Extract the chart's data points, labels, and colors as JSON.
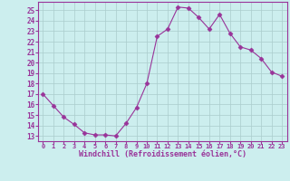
{
  "x": [
    0,
    1,
    2,
    3,
    4,
    5,
    6,
    7,
    8,
    9,
    10,
    11,
    12,
    13,
    14,
    15,
    16,
    17,
    18,
    19,
    20,
    21,
    22,
    23
  ],
  "y": [
    17,
    15.9,
    14.8,
    14.1,
    13.3,
    13.1,
    13.1,
    13.0,
    14.2,
    15.7,
    18.0,
    22.5,
    23.2,
    25.3,
    25.2,
    24.3,
    23.2,
    24.6,
    22.8,
    21.5,
    21.2,
    20.4,
    19.1,
    18.7
  ],
  "line_color": "#993399",
  "marker": "D",
  "marker_size": 2.5,
  "bg_color": "#cceeee",
  "grid_color": "#aacccc",
  "xlabel": "Windchill (Refroidissement éolien,°C)",
  "xlabel_color": "#993399",
  "tick_color": "#993399",
  "ylim_min": 12.5,
  "ylim_max": 25.8,
  "xlim_min": -0.5,
  "xlim_max": 23.5,
  "yticks": [
    13,
    14,
    15,
    16,
    17,
    18,
    19,
    20,
    21,
    22,
    23,
    24,
    25
  ],
  "xticks": [
    0,
    1,
    2,
    3,
    4,
    5,
    6,
    7,
    8,
    9,
    10,
    11,
    12,
    13,
    14,
    15,
    16,
    17,
    18,
    19,
    20,
    21,
    22,
    23
  ]
}
